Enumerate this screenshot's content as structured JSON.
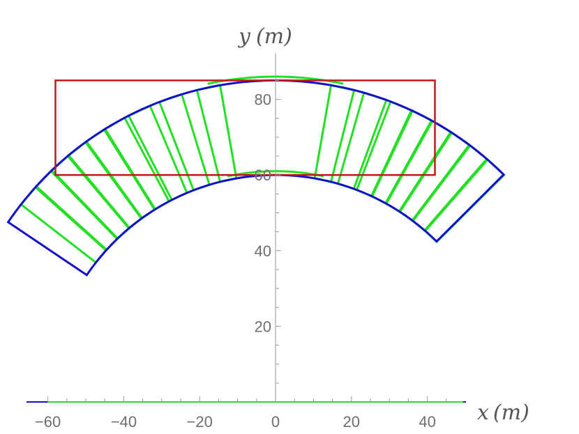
{
  "chart_data": {
    "type": "line",
    "xlabel": "x",
    "xunit": "(m)",
    "ylabel": "y",
    "yunit": "(m)",
    "xlim": [
      -65,
      50
    ],
    "ylim": [
      0,
      92
    ],
    "x_ticks": [
      -60,
      -40,
      -20,
      0,
      20,
      40
    ],
    "y_ticks": [
      20,
      40,
      60,
      80
    ],
    "grid": false,
    "colors": {
      "blue": "#1010cc",
      "green": "#22e022",
      "red": "#c01818",
      "axis": "#9a9a9a"
    },
    "red_rectangle": {
      "x": [
        -58,
        42
      ],
      "y": [
        60,
        85
      ]
    },
    "blue_sector": {
      "center": [
        0,
        0
      ],
      "inner_radius": 60,
      "outer_radius": 85,
      "angle_range_deg": [
        -56,
        45
      ]
    },
    "green_arcs": {
      "center": [
        0,
        0
      ],
      "radii": [
        61,
        86
      ],
      "angle_range_deg": [
        -12,
        12
      ]
    },
    "green_strip_angles_deg": [
      -50,
      -46,
      -42,
      -38,
      -34,
      -30,
      -25,
      -19,
      -12,
      12,
      18,
      23,
      27,
      31,
      35,
      39,
      43
    ],
    "green_strip_width_deg": 4.2,
    "baseline_y": 0
  }
}
